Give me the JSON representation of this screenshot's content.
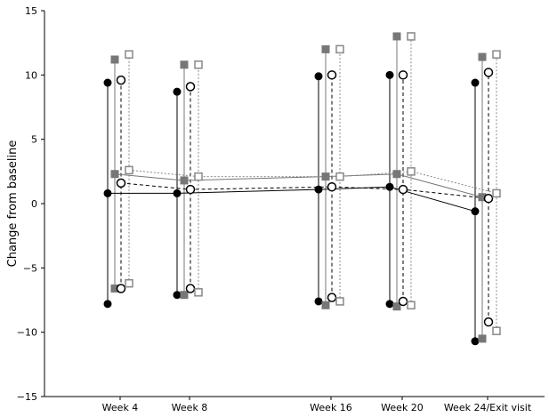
{
  "chart_data": {
    "type": "line",
    "title": "",
    "xlabel": "",
    "ylabel": "Change from baseline",
    "ylim": [
      -15,
      15
    ],
    "yticks": [
      -15,
      -10,
      -5,
      0,
      5,
      10,
      15
    ],
    "ytick_labels": [
      "−15",
      "−10",
      "−5",
      "0",
      "5",
      "10",
      "15"
    ],
    "categories": [
      "Week 4",
      "Week 8",
      "Week 16",
      "Week 20",
      "Week 24/Exit visit"
    ],
    "grid": false,
    "legend": "none",
    "series": [
      {
        "marker": "filled-circle",
        "line": "solid",
        "color": "#000000",
        "values": [
          0.8,
          0.8,
          1.1,
          1.3,
          -0.6
        ],
        "lower": [
          -7.8,
          -7.1,
          -7.6,
          -7.8,
          -10.7
        ],
        "upper": [
          9.4,
          8.7,
          9.9,
          10.0,
          9.4
        ]
      },
      {
        "marker": "filled-square",
        "line": "solid",
        "color": "#777777",
        "values": [
          2.3,
          1.8,
          2.1,
          2.3,
          0.5
        ],
        "lower": [
          -6.6,
          -7.1,
          -7.9,
          -8.0,
          -10.5
        ],
        "upper": [
          11.2,
          10.8,
          12.0,
          13.0,
          11.4
        ]
      },
      {
        "marker": "open-circle",
        "line": "dashed",
        "color": "#000000",
        "values": [
          1.6,
          1.1,
          1.3,
          1.1,
          0.4
        ],
        "lower": [
          -6.6,
          -6.6,
          -7.3,
          -7.6,
          -9.2
        ],
        "upper": [
          9.6,
          9.1,
          10.0,
          10.0,
          10.2
        ]
      },
      {
        "marker": "open-square",
        "line": "dotted",
        "color": "#888888",
        "values": [
          2.6,
          2.1,
          2.1,
          2.5,
          0.8
        ],
        "lower": [
          -6.2,
          -6.9,
          -7.6,
          -7.9,
          -9.9
        ],
        "upper": [
          11.6,
          10.8,
          12.0,
          13.0,
          11.6
        ]
      }
    ]
  }
}
